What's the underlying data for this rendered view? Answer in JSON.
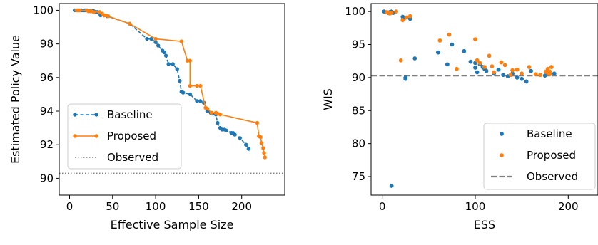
{
  "colors": {
    "baseline": "#1f77b4",
    "proposed": "#ff7f0e",
    "observed_left": "#808080",
    "observed_right": "#7f7f7f"
  },
  "chart_data": [
    {
      "type": "line",
      "xlabel": "Effective Sample Size",
      "ylabel": "Estimated Policy Value",
      "xlim": [
        -12,
        250
      ],
      "ylim": [
        89.0,
        100.4
      ],
      "xticks": [
        0,
        50,
        100,
        150,
        200
      ],
      "yticks": [
        90,
        92,
        94,
        96,
        98,
        100
      ],
      "legend": {
        "position": "lower-left",
        "entries": [
          "Baseline",
          "Proposed",
          "Observed"
        ]
      },
      "observed": 90.3,
      "series": [
        {
          "name": "Baseline",
          "style": "dashed-line-with-markers",
          "x": [
            6,
            8,
            10,
            12,
            14,
            16,
            18,
            20,
            22,
            24,
            26,
            28,
            30,
            32,
            34,
            36,
            40,
            44,
            70,
            90,
            95,
            100,
            103,
            108,
            110,
            112,
            115,
            120,
            125,
            128,
            130,
            132,
            140,
            148,
            152,
            156,
            160,
            164,
            166,
            170,
            172,
            175,
            177,
            180,
            182,
            188,
            190,
            192,
            198,
            205,
            208
          ],
          "y": [
            100.0,
            100.0,
            100.0,
            100.0,
            100.0,
            100.0,
            100.0,
            100.0,
            99.95,
            99.95,
            99.95,
            99.95,
            99.9,
            99.9,
            99.85,
            99.7,
            99.7,
            99.65,
            99.2,
            98.3,
            98.3,
            98.1,
            97.9,
            97.6,
            97.5,
            97.3,
            96.8,
            96.8,
            96.5,
            95.8,
            95.15,
            95.1,
            95.0,
            94.6,
            94.6,
            94.5,
            94.0,
            93.9,
            93.85,
            93.8,
            93.3,
            93.0,
            92.9,
            92.9,
            92.85,
            92.7,
            92.7,
            92.6,
            92.4,
            92.0,
            91.75
          ]
        },
        {
          "name": "Proposed",
          "style": "solid-line-with-markers",
          "x": [
            8,
            10,
            12,
            20,
            22,
            25,
            28,
            35,
            38,
            40,
            42,
            45,
            70,
            100,
            130,
            137,
            140,
            140,
            148,
            152,
            158,
            160,
            165,
            170,
            170,
            172,
            175,
            218,
            220,
            222,
            223,
            225,
            226,
            227
          ],
          "y": [
            100.0,
            100.0,
            100.0,
            100.0,
            99.95,
            99.95,
            99.9,
            99.9,
            99.8,
            99.7,
            99.7,
            99.65,
            99.2,
            98.3,
            98.15,
            97.0,
            97.0,
            95.5,
            95.5,
            95.5,
            94.2,
            94.15,
            93.9,
            93.9,
            93.9,
            93.85,
            93.8,
            93.3,
            92.5,
            92.45,
            92.1,
            91.8,
            91.5,
            91.25
          ]
        }
      ]
    },
    {
      "type": "scatter",
      "xlabel": "ESS",
      "ylabel": "WIS",
      "xlim": [
        -12,
        232
      ],
      "ylim": [
        72.2,
        101.2
      ],
      "xticks": [
        0,
        100,
        200
      ],
      "yticks": [
        75,
        80,
        85,
        90,
        95,
        100
      ],
      "legend": {
        "position": "lower-right",
        "entries": [
          "Baseline",
          "Proposed",
          "Observed"
        ]
      },
      "observed": 90.3,
      "series": [
        {
          "name": "Baseline",
          "x": [
            2,
            6,
            8,
            10,
            12,
            22,
            23,
            25,
            30,
            35,
            60,
            70,
            75,
            88,
            95,
            100,
            100,
            102,
            105,
            108,
            110,
            112,
            120,
            125,
            130,
            135,
            140,
            145,
            150,
            155,
            160,
            175,
            180,
            185,
            10,
            25
          ],
          "y": [
            100.0,
            99.8,
            99.9,
            100.0,
            99.8,
            99.2,
            98.8,
            90.0,
            98.9,
            92.9,
            93.8,
            92.0,
            95.0,
            94.0,
            92.4,
            92.2,
            91.5,
            90.8,
            92.0,
            91.6,
            91.3,
            91.0,
            90.6,
            91.2,
            90.4,
            90.2,
            90.6,
            90.0,
            89.8,
            89.4,
            91.0,
            90.3,
            90.5,
            90.6,
            73.6,
            89.8
          ]
        },
        {
          "name": "Proposed",
          "x": [
            5,
            8,
            10,
            15,
            20,
            22,
            26,
            30,
            62,
            72,
            80,
            100,
            102,
            105,
            110,
            115,
            118,
            120,
            128,
            132,
            138,
            140,
            145,
            150,
            158,
            165,
            170,
            176,
            178,
            178,
            180,
            180,
            182
          ],
          "y": [
            99.9,
            99.7,
            99.8,
            100.0,
            92.6,
            98.7,
            99.1,
            99.3,
            95.6,
            96.5,
            91.3,
            95.8,
            92.6,
            92.2,
            91.6,
            93.3,
            91.7,
            90.8,
            92.3,
            91.9,
            90.4,
            91.1,
            91.2,
            90.6,
            91.6,
            90.5,
            90.4,
            90.9,
            90.7,
            91.3,
            90.5,
            90.9,
            91.6
          ]
        }
      ]
    }
  ]
}
